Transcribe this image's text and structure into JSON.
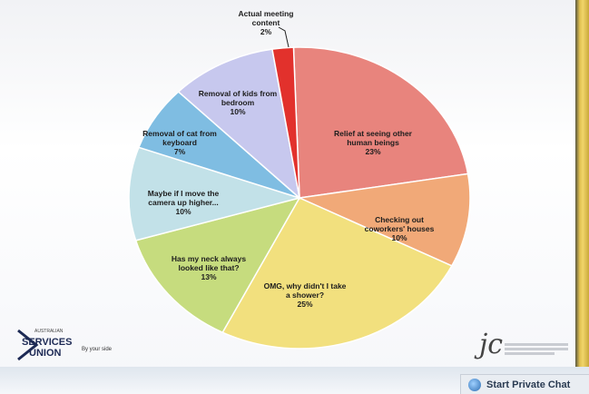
{
  "chart_data": {
    "type": "pie",
    "slices": [
      {
        "label_lines": [
          "Relief at seeing other",
          "human beings"
        ],
        "value_label": "23%",
        "value": 23,
        "color": "#e8847d"
      },
      {
        "label_lines": [
          "Checking out",
          "coworkers' houses"
        ],
        "value_label": "10%",
        "value": 10,
        "color": "#f1a978"
      },
      {
        "label_lines": [
          "OMG, why didn't I take",
          "a shower?"
        ],
        "value_label": "25%",
        "value": 25,
        "color": "#f2e07e"
      },
      {
        "label_lines": [
          "Has my neck always",
          "looked like that?"
        ],
        "value_label": "13%",
        "value": 13,
        "color": "#c6dc7e"
      },
      {
        "label_lines": [
          "Maybe if I move the",
          "camera up higher..."
        ],
        "value_label": "10%",
        "value": 10,
        "color": "#c2e1e8"
      },
      {
        "label_lines": [
          "Removal of cat from",
          "keyboard"
        ],
        "value_label": "7%",
        "value": 7,
        "color": "#7fbde2"
      },
      {
        "label_lines": [
          "Removal of kids from",
          "bedroom"
        ],
        "value_label": "10%",
        "value": 10,
        "color": "#c7c8ee"
      },
      {
        "label_lines": [
          "Actual meeting",
          "content"
        ],
        "value_label": "2%",
        "value": 2,
        "color": "#e2312c"
      }
    ]
  },
  "logo_left": {
    "small": "AUSTRALIAN",
    "services": "SERVICES",
    "union": "UNION",
    "tagline": "By your side"
  },
  "logo_right": {
    "mark": "jc"
  },
  "chat_button": {
    "label": "Start Private Chat",
    "icon": "chat-bubble-icon"
  }
}
